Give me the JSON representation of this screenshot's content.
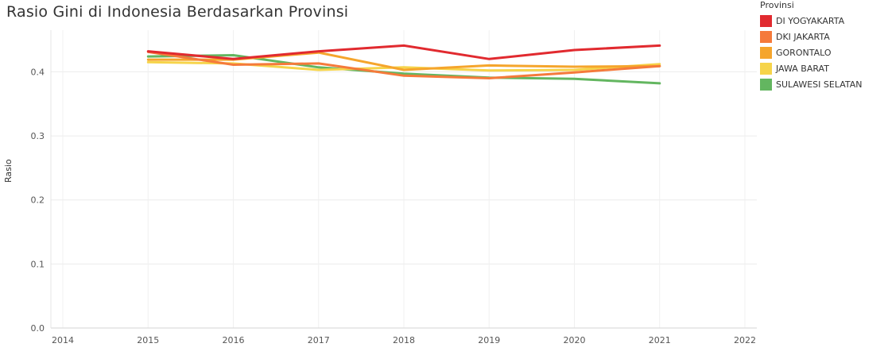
{
  "chart_data": {
    "type": "line",
    "title": "Rasio Gini di Indonesia Berdasarkan Provinsi",
    "xlabel": "",
    "ylabel": "Rasio",
    "x": [
      2015,
      2016,
      2017,
      2018,
      2019,
      2020,
      2021
    ],
    "x_ticks": [
      "2014",
      "2015",
      "2016",
      "2017",
      "2018",
      "2019",
      "2020",
      "2021",
      "2022"
    ],
    "xlim": [
      2014,
      2022
    ],
    "y_ticks": [
      "0.0",
      "0.1",
      "0.2",
      "0.3",
      "0.4"
    ],
    "ylim": [
      0,
      0.465
    ],
    "grid": true,
    "legend_title": "Provinsi",
    "legend_position": "right",
    "series": [
      {
        "name": "DI YOGYAKARTA",
        "color": "#e12a2f",
        "values": [
          0.432,
          0.42,
          0.432,
          0.441,
          0.42,
          0.434,
          0.441
        ]
      },
      {
        "name": "DKI JAKARTA",
        "color": "#f57a3b",
        "values": [
          0.431,
          0.411,
          0.413,
          0.394,
          0.39,
          0.399,
          0.409
        ]
      },
      {
        "name": "GORONTALO",
        "color": "#f5a52c",
        "values": [
          0.419,
          0.419,
          0.43,
          0.403,
          0.41,
          0.408,
          0.409
        ]
      },
      {
        "name": "JAWA BARAT",
        "color": "#f6d44a",
        "values": [
          0.415,
          0.413,
          0.403,
          0.407,
          0.402,
          0.403,
          0.412
        ]
      },
      {
        "name": "SULAWESI SELATAN",
        "color": "#63b660",
        "values": [
          0.424,
          0.426,
          0.407,
          0.397,
          0.391,
          0.389,
          0.382
        ]
      }
    ]
  }
}
